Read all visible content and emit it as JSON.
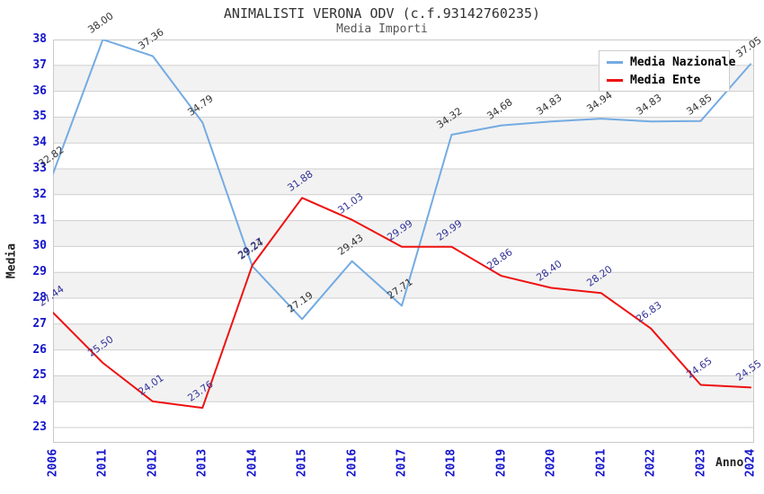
{
  "title": "ANIMALISTI VERONA ODV (c.f.93142760235)",
  "subtitle": "Media Importi",
  "axes": {
    "y_title": "Media",
    "x_title": "Anno"
  },
  "legend": {
    "items": [
      {
        "label": "Media Nazionale",
        "color": "#74abe2"
      },
      {
        "label": "Media Ente",
        "color": "#ee1111"
      }
    ]
  },
  "colors": {
    "tick_label": "#1414cc",
    "gridline": "#cfcfcf",
    "band_fill": "#f2f2f2",
    "plot_border": "#c9c9c9",
    "title_text": "#333333",
    "subtitle_text": "#555555"
  },
  "chart_data": {
    "type": "line",
    "title": "ANIMALISTI VERONA ODV (c.f.93142760235)",
    "subtitle": "Media Importi",
    "xlabel": "Anno",
    "ylabel": "Media",
    "ylim": [
      23,
      38
    ],
    "y_ticks": [
      23,
      24,
      25,
      26,
      27,
      28,
      29,
      30,
      31,
      32,
      33,
      34,
      35,
      36,
      37,
      38
    ],
    "grid": "horizontal gridlines with alternating shaded bands",
    "legend_position": "top-right",
    "categories": [
      "2006",
      "2011",
      "2012",
      "2013",
      "2014",
      "2015",
      "2016",
      "2017",
      "2018",
      "2019",
      "2020",
      "2021",
      "2022",
      "2023",
      "2024"
    ],
    "series": [
      {
        "name": "Media Nazionale",
        "color": "#74abe2",
        "label_color": "#333333",
        "values": [
          32.82,
          38.0,
          37.36,
          34.79,
          29.24,
          27.19,
          29.43,
          27.71,
          34.32,
          34.68,
          34.83,
          34.94,
          34.83,
          34.85,
          37.05
        ]
      },
      {
        "name": "Media Ente",
        "color": "#ee1111",
        "label_color": "#333399",
        "values": [
          27.44,
          25.5,
          24.01,
          23.76,
          29.27,
          31.88,
          31.03,
          29.99,
          29.99,
          28.86,
          28.4,
          28.2,
          26.83,
          24.65,
          24.55
        ]
      }
    ]
  }
}
